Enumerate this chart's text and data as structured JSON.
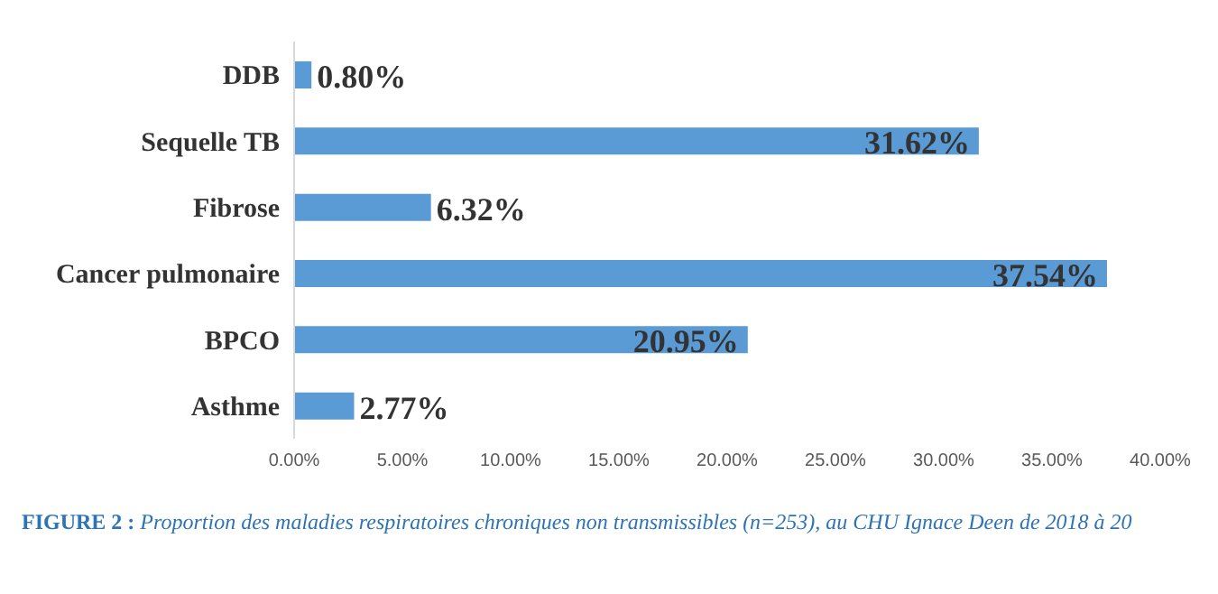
{
  "chart_data": {
    "type": "bar",
    "orientation": "horizontal",
    "title": "FIGURE 2 : Proportion des maladies respiratoires chroniques non transmissibles (n=253), au CHU Ignace Deen de 2018 à 20",
    "categories": [
      "DDB",
      "Sequelle TB",
      "Fibrose",
      "Cancer pulmonaire",
      "BPCO",
      "Asthme"
    ],
    "values": [
      0.8,
      31.62,
      6.32,
      37.54,
      20.95,
      2.77
    ],
    "value_labels": [
      "0.80%",
      "31.62%",
      "6.32%",
      "37.54%",
      "20.95%",
      "2.77%"
    ],
    "color": "#5b9bd5",
    "xlim": [
      0,
      40
    ],
    "xticks": [
      {
        "value": 0,
        "label": "0.00%"
      },
      {
        "value": 5,
        "label": "5.00%"
      },
      {
        "value": 10,
        "label": "10.00%"
      },
      {
        "value": 15,
        "label": "15.00%"
      },
      {
        "value": 20,
        "label": "20.00%"
      },
      {
        "value": 25,
        "label": "25.00%"
      },
      {
        "value": 30,
        "label": "30.00%"
      },
      {
        "value": 35,
        "label": "35.00%"
      },
      {
        "value": 40,
        "label": "40.00%"
      }
    ],
    "grid": false
  }
}
